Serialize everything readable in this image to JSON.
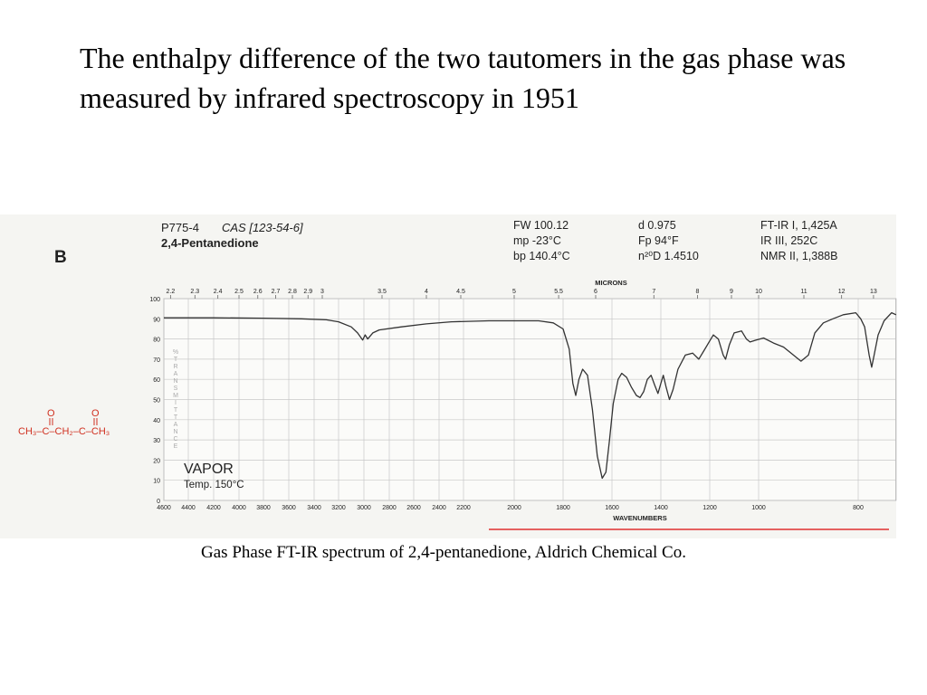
{
  "heading": "The enthalpy difference of the two tautomers in the gas phase was measured by infrared spectroscopy in 1951",
  "caption": "Gas Phase FT-IR spectrum of 2,4-pentanedione, Aldrich Chemical Co.",
  "figure_info": {
    "panel_label": "B",
    "catalog": "P775-4",
    "cas": "CAS [123-54-6]",
    "compound": "2,4-Pentanedione",
    "properties": [
      "FW 100.12",
      "mp -23°C",
      "bp 140.4°C"
    ],
    "properties2": [
      "d 0.975",
      "Fp 94°F",
      "n²⁰D 1.4510"
    ],
    "references": [
      "FT-IR I, 1,425A",
      "IR III, 252C",
      "NMR II, 1,388B"
    ],
    "structure": {
      "chain": "CH₃–C–CH₂–C–CH₃",
      "oxygens": [
        "O",
        "O"
      ]
    }
  },
  "chart_data": {
    "type": "line",
    "x_label": "WAVENUMBERS",
    "x2_label": "MICRONS",
    "y_label": "%TRANSMITTANCE",
    "annotations": [
      "VAPOR",
      "Temp. 150°C"
    ],
    "x": [
      4600,
      4200,
      3800,
      3500,
      3300,
      3200,
      3100,
      3050,
      3010,
      2990,
      2970,
      2930,
      2880,
      2700,
      2500,
      2300,
      2100,
      2000,
      1900,
      1840,
      1800,
      1775,
      1760,
      1748,
      1735,
      1720,
      1700,
      1680,
      1660,
      1640,
      1625,
      1610,
      1595,
      1575,
      1560,
      1540,
      1520,
      1500,
      1485,
      1470,
      1455,
      1440,
      1425,
      1412,
      1400,
      1390,
      1378,
      1365,
      1350,
      1330,
      1300,
      1270,
      1245,
      1225,
      1205,
      1185,
      1165,
      1145,
      1135,
      1120,
      1100,
      1070,
      1050,
      1035,
      1010,
      990,
      970,
      950,
      930,
      915,
      900,
      887,
      870,
      851,
      830,
      805,
      795,
      787,
      778,
      773,
      768,
      760,
      748,
      733,
      724
    ],
    "series": [
      {
        "color": "#333333",
        "values": [
          90.5,
          90.5,
          90.3,
          90,
          89.5,
          88.5,
          86,
          83,
          79.5,
          82,
          80,
          83,
          84.5,
          86,
          87.5,
          88.5,
          89,
          89,
          89,
          88,
          85,
          75,
          58,
          52,
          60,
          65,
          62,
          45,
          22,
          11,
          14,
          30,
          48,
          60,
          63,
          61,
          56,
          52,
          51,
          54,
          60,
          62,
          57,
          53,
          58,
          62,
          56,
          50,
          55,
          65,
          72,
          73,
          70,
          74,
          78,
          82,
          80,
          72,
          70,
          77,
          83,
          84,
          80,
          78.5,
          79.5,
          80.5,
          78,
          76,
          72,
          69,
          72,
          83,
          88,
          90,
          92,
          93,
          90,
          86,
          72,
          66,
          72,
          82,
          89,
          93,
          92
        ]
      }
    ],
    "xlim": [
      4600,
      724
    ],
    "xticks": [
      4600,
      4400,
      4200,
      4000,
      3800,
      3600,
      3400,
      3200,
      3000,
      2800,
      2600,
      2400,
      2200,
      2000,
      1800,
      1600,
      1400,
      1200,
      1000,
      800
    ],
    "x2ticks": [
      2.2,
      2.3,
      2.4,
      2.5,
      2.6,
      2.7,
      2.8,
      2.9,
      3,
      3.5,
      4,
      4.5,
      5,
      5.5,
      6,
      7,
      8,
      9,
      10,
      11,
      12,
      13
    ],
    "ylim": [
      0,
      100
    ],
    "yticks": [
      0,
      10,
      20,
      30,
      40,
      50,
      60,
      70,
      80,
      90,
      100
    ],
    "grid": true
  }
}
